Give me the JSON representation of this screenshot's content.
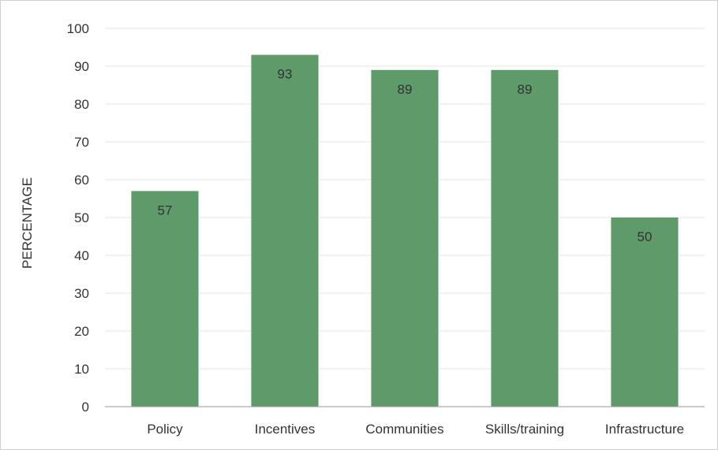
{
  "chart_data": {
    "type": "bar",
    "title": "",
    "xlabel": "",
    "ylabel": "PERCENTAGE",
    "categories": [
      "Policy",
      "Incentives",
      "Communities",
      "Skills/training",
      "Infrastructure"
    ],
    "values": [
      57,
      93,
      89,
      89,
      50
    ],
    "data_labels": [
      "57",
      "93",
      "89",
      "89",
      "50"
    ],
    "ylim": [
      0,
      100
    ],
    "yticks": [
      0,
      10,
      20,
      30,
      40,
      50,
      60,
      70,
      80,
      90,
      100
    ],
    "ytick_labels": [
      "0",
      "10",
      "20",
      "30",
      "40",
      "50",
      "60",
      "70",
      "80",
      "90",
      "100"
    ],
    "grid": true,
    "legend": "none",
    "colors": {
      "bar": "#5e9a6a",
      "grid": "#e6e6e6",
      "axis": "#999999",
      "text": "#333333"
    }
  }
}
